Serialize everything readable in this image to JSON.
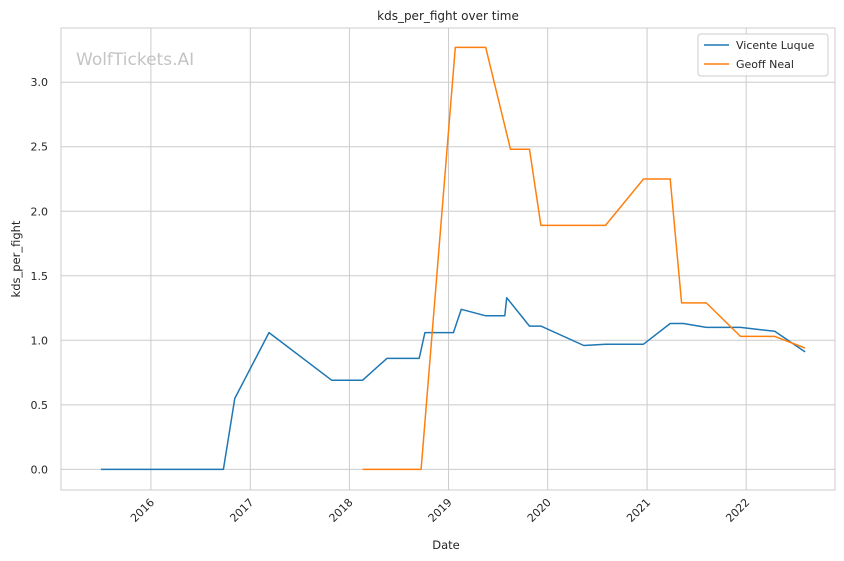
{
  "chart_data": {
    "type": "line",
    "title": "kds_per_fight over time",
    "xlabel": "Date",
    "ylabel": "kds_per_fight",
    "watermark": "WolfTickets.AI",
    "xlim": [
      "2015-02-04",
      "2022-11-24"
    ],
    "ylim": [
      -0.16,
      3.42
    ],
    "x_ticks": [
      "2016",
      "2017",
      "2018",
      "2019",
      "2020",
      "2021",
      "2022"
    ],
    "y_ticks": [
      "0.0",
      "0.5",
      "1.0",
      "1.5",
      "2.0",
      "2.5",
      "3.0"
    ],
    "grid": true,
    "legend_position": "top-right",
    "series": [
      {
        "name": "Vicente Luque",
        "color": "#1f77b4",
        "points": [
          [
            "2015-07-01",
            0.0
          ],
          [
            "2016-09-24",
            0.0
          ],
          [
            "2016-11-05",
            0.55
          ],
          [
            "2017-03-11",
            1.06
          ],
          [
            "2017-10-28",
            0.69
          ],
          [
            "2018-02-18",
            0.69
          ],
          [
            "2018-05-19",
            0.86
          ],
          [
            "2018-09-15",
            0.86
          ],
          [
            "2018-10-06",
            1.06
          ],
          [
            "2019-01-19",
            1.06
          ],
          [
            "2019-02-17",
            1.24
          ],
          [
            "2019-05-18",
            1.19
          ],
          [
            "2019-07-27",
            1.19
          ],
          [
            "2019-08-03",
            1.33
          ],
          [
            "2019-10-26",
            1.11
          ],
          [
            "2019-12-07",
            1.11
          ],
          [
            "2020-05-13",
            0.96
          ],
          [
            "2020-08-01",
            0.97
          ],
          [
            "2020-12-19",
            0.97
          ],
          [
            "2021-03-27",
            1.13
          ],
          [
            "2021-05-15",
            1.13
          ],
          [
            "2021-08-07",
            1.1
          ],
          [
            "2021-12-11",
            1.1
          ],
          [
            "2022-04-16",
            1.07
          ],
          [
            "2022-08-06",
            0.91
          ]
        ]
      },
      {
        "name": "Geoff Neal",
        "color": "#ff7f0e",
        "points": [
          [
            "2018-02-18",
            0.0
          ],
          [
            "2018-09-22",
            0.0
          ],
          [
            "2019-01-26",
            3.27
          ],
          [
            "2019-05-18",
            3.27
          ],
          [
            "2019-08-17",
            2.48
          ],
          [
            "2019-10-26",
            2.48
          ],
          [
            "2019-12-07",
            1.89
          ],
          [
            "2020-08-01",
            1.89
          ],
          [
            "2020-12-19",
            2.25
          ],
          [
            "2021-03-27",
            2.25
          ],
          [
            "2021-05-08",
            1.29
          ],
          [
            "2021-08-07",
            1.29
          ],
          [
            "2021-12-11",
            1.03
          ],
          [
            "2022-04-16",
            1.03
          ],
          [
            "2022-08-06",
            0.94
          ]
        ]
      }
    ]
  }
}
